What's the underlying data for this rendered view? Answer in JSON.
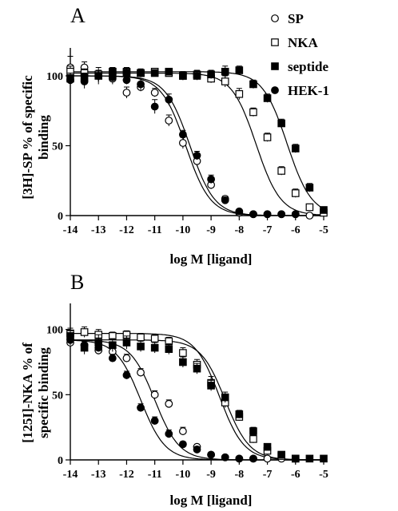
{
  "legend": [
    {
      "label": "SP",
      "marker": "open-circle"
    },
    {
      "label": "NKA",
      "marker": "open-square"
    },
    {
      "label": "septide",
      "marker": "filled-square"
    },
    {
      "label": "HEK-1",
      "marker": "filled-circle"
    }
  ],
  "colors": {
    "ink": "#000000",
    "background": "#ffffff"
  },
  "chart_data": [
    {
      "type": "scatter",
      "panel": "A",
      "ylabel_line1": "[3H]-SP % of specific",
      "ylabel_line2": "binding",
      "xlabel": "log M [ligand]",
      "xlim": [
        -14,
        -5
      ],
      "ylim": [
        0,
        120
      ],
      "xticks": [
        -14,
        -13,
        -12,
        -11,
        -10,
        -9,
        -8,
        -7,
        -6,
        -5
      ],
      "yticks": [
        0,
        50,
        100
      ],
      "grid": false,
      "series": [
        {
          "name": "SP",
          "marker": "open-circle",
          "x": [
            -14,
            -13.5,
            -13,
            -12.5,
            -12,
            -11.5,
            -11,
            -10.5,
            -10,
            -9.5,
            -9,
            -8.5,
            -8,
            -7.5,
            -7,
            -6.5,
            -6,
            -5.5
          ],
          "y": [
            106,
            106,
            100,
            98,
            88,
            92,
            88,
            68,
            52,
            39,
            22,
            12,
            2,
            1,
            1,
            1,
            1,
            0
          ],
          "err": [
            8,
            4,
            6,
            4,
            4,
            3,
            3,
            4,
            4,
            3,
            3,
            2,
            1,
            1,
            1,
            1,
            1,
            1
          ],
          "fit_ic50": -9.9,
          "fit_top": 100,
          "fit_bottom": 0
        },
        {
          "name": "NKA",
          "marker": "open-square",
          "x": [
            -14,
            -13.5,
            -13,
            -12.5,
            -12,
            -11.5,
            -11,
            -10.5,
            -10,
            -9.5,
            -9,
            -8.5,
            -8,
            -7.5,
            -7,
            -6.5,
            -6,
            -5.5,
            -5
          ],
          "y": [
            103,
            102,
            101,
            103,
            103,
            102,
            103,
            102,
            100,
            101,
            98,
            96,
            87,
            74,
            56,
            32,
            16,
            6,
            2
          ],
          "err": [
            4,
            3,
            3,
            3,
            3,
            2,
            2,
            2,
            3,
            3,
            3,
            4,
            4,
            3,
            3,
            3,
            3,
            2,
            1
          ],
          "fit_ic50": -7.4,
          "fit_top": 102,
          "fit_bottom": 0
        },
        {
          "name": "septide",
          "marker": "filled-square",
          "x": [
            -14,
            -13.5,
            -13,
            -12.5,
            -12,
            -11.5,
            -11,
            -10.5,
            -10,
            -9.5,
            -9,
            -8.5,
            -8,
            -7.5,
            -7,
            -6.5,
            -6,
            -5.5,
            -5
          ],
          "y": [
            98,
            99,
            100,
            103,
            102,
            102,
            102,
            103,
            100,
            100,
            101,
            103,
            104,
            94,
            84,
            66,
            48,
            20,
            4
          ],
          "err": [
            4,
            3,
            4,
            3,
            3,
            3,
            2,
            2,
            3,
            3,
            3,
            4,
            3,
            3,
            3,
            3,
            3,
            3,
            2
          ],
          "fit_ic50": -6.3,
          "fit_top": 103,
          "fit_bottom": 0
        },
        {
          "name": "HEK-1",
          "marker": "filled-circle",
          "x": [
            -14,
            -13.5,
            -13,
            -12.5,
            -12,
            -11.5,
            -11,
            -10.5,
            -10,
            -9.5,
            -9,
            -8.5,
            -8,
            -7.5,
            -7,
            -6.5,
            -6
          ],
          "y": [
            97,
            96,
            100,
            99,
            97,
            94,
            78,
            83,
            58,
            43,
            26,
            11,
            3,
            1,
            1,
            1,
            1
          ],
          "err": [
            4,
            5,
            4,
            3,
            3,
            4,
            5,
            4,
            3,
            3,
            3,
            2,
            1,
            1,
            1,
            1,
            1
          ],
          "fit_ic50": -9.75,
          "fit_top": 100,
          "fit_bottom": 0
        }
      ]
    },
    {
      "type": "scatter",
      "panel": "B",
      "ylabel_line1": "[125I]-NKA % of",
      "ylabel_line2": "specific binding",
      "xlabel": "log M [ligand]",
      "xlim": [
        -14,
        -5
      ],
      "ylim": [
        0,
        120
      ],
      "xticks": [
        -14,
        -13,
        -12,
        -11,
        -10,
        -9,
        -8,
        -7,
        -6,
        -5
      ],
      "yticks": [
        0,
        50,
        100
      ],
      "grid": false,
      "series": [
        {
          "name": "SP",
          "marker": "open-circle",
          "x": [
            -14,
            -13.5,
            -13,
            -12.5,
            -12,
            -11.5,
            -11,
            -10.5,
            -10,
            -9.5,
            -9,
            -8.5,
            -8,
            -7.5,
            -7,
            -6.5,
            -6
          ],
          "y": [
            90,
            88,
            84,
            83,
            78,
            67,
            50,
            43,
            22,
            10,
            4,
            2,
            1,
            1,
            1,
            1,
            1
          ],
          "err": [
            4,
            3,
            3,
            3,
            3,
            3,
            3,
            3,
            3,
            2,
            1,
            1,
            1,
            1,
            1,
            1,
            1
          ],
          "fit_ic50": -11.0,
          "fit_top": 92,
          "fit_bottom": 0
        },
        {
          "name": "NKA",
          "marker": "open-square",
          "x": [
            -14,
            -13.5,
            -13,
            -12.5,
            -12,
            -11.5,
            -11,
            -10.5,
            -10,
            -9.5,
            -9,
            -8.5,
            -8,
            -7.5,
            -7,
            -6.5,
            -6
          ],
          "y": [
            97,
            98,
            96,
            95,
            96,
            94,
            93,
            91,
            82,
            73,
            59,
            44,
            33,
            16,
            7,
            3,
            1
          ],
          "err": [
            4,
            4,
            4,
            3,
            3,
            3,
            3,
            3,
            4,
            4,
            5,
            4,
            3,
            3,
            2,
            2,
            1
          ],
          "fit_ic50": -8.7,
          "fit_top": 97,
          "fit_bottom": 0
        },
        {
          "name": "septide",
          "marker": "filled-square",
          "x": [
            -14,
            -13.5,
            -13,
            -12.5,
            -12,
            -11.5,
            -11,
            -10.5,
            -10,
            -9.5,
            -9,
            -8.5,
            -8,
            -7.5,
            -7,
            -6.5,
            -6,
            -5.5,
            -5
          ],
          "y": [
            95,
            86,
            90,
            88,
            90,
            87,
            86,
            85,
            75,
            70,
            57,
            48,
            35,
            22,
            10,
            4,
            1,
            1,
            1
          ],
          "err": [
            4,
            5,
            6,
            5,
            5,
            4,
            4,
            4,
            4,
            4,
            4,
            4,
            3,
            3,
            2,
            2,
            1,
            1,
            1
          ],
          "fit_ic50": -8.5,
          "fit_top": 92,
          "fit_bottom": 0
        },
        {
          "name": "HEK-1",
          "marker": "filled-circle",
          "x": [
            -14,
            -13.5,
            -13,
            -12.5,
            -12,
            -11.5,
            -11,
            -10.5,
            -10,
            -9.5,
            -9,
            -8.5,
            -8,
            -7.5
          ],
          "y": [
            92,
            88,
            86,
            78,
            65,
            40,
            30,
            20,
            12,
            8,
            4,
            2,
            1,
            1
          ],
          "err": [
            4,
            3,
            3,
            3,
            3,
            3,
            3,
            3,
            2,
            2,
            1,
            1,
            1,
            1
          ],
          "fit_ic50": -11.5,
          "fit_top": 92,
          "fit_bottom": 0
        }
      ]
    }
  ]
}
